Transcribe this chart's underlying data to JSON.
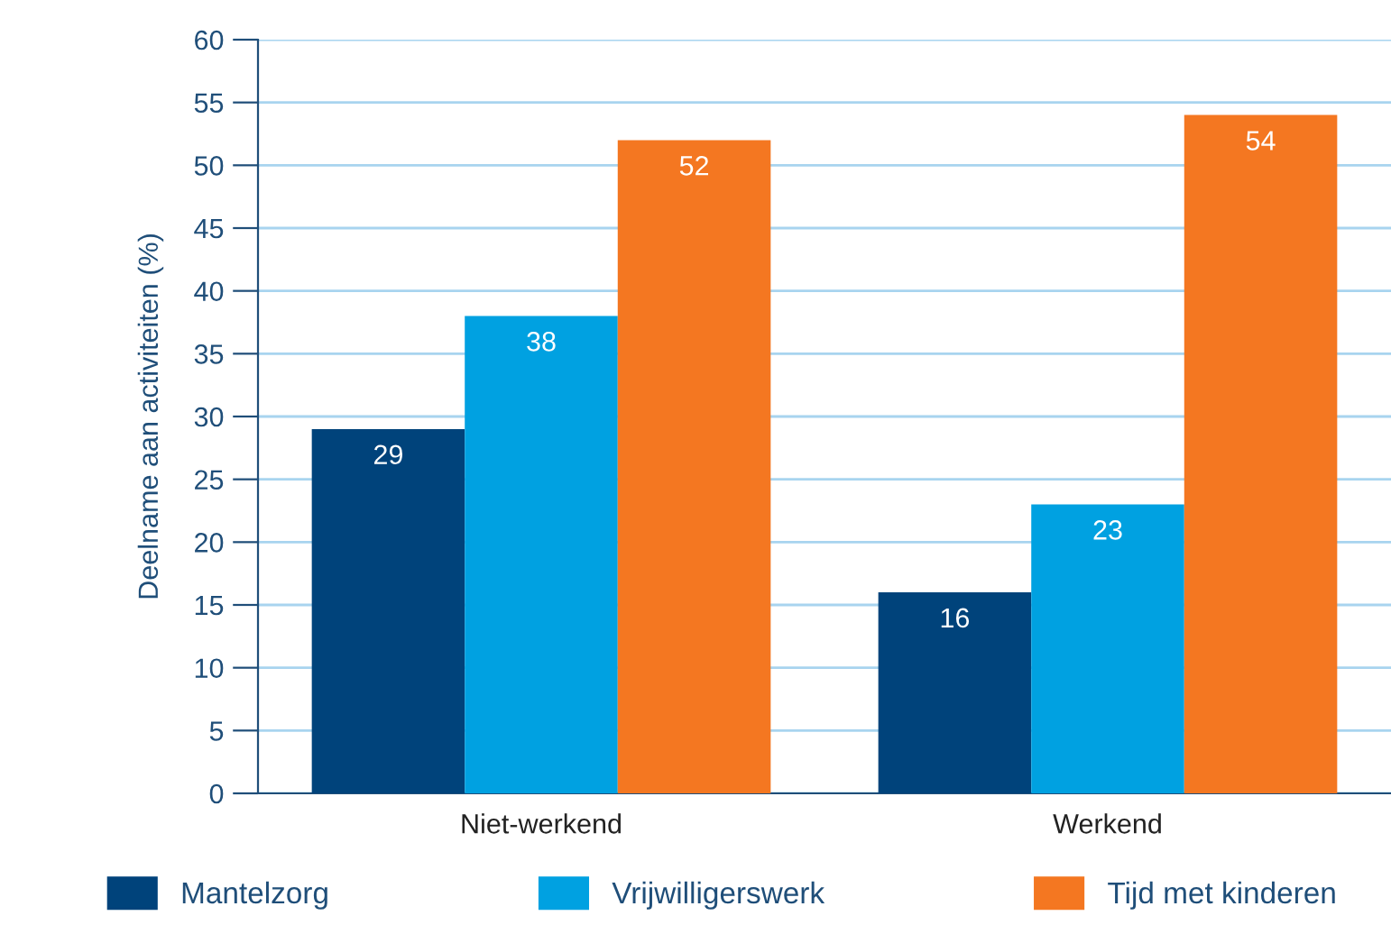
{
  "chart_data": {
    "type": "bar",
    "ylabel": "Deelname aan activiteiten (%)",
    "categories": [
      "Niet-werkend",
      "Werkend"
    ],
    "series": [
      {
        "name": "Mantelzorg",
        "color": "#00437b",
        "values": [
          29,
          16
        ]
      },
      {
        "name": "Vrijwilligerswerk",
        "color": "#00a1e1",
        "values": [
          38,
          23
        ]
      },
      {
        "name": "Tijd met kinderen",
        "color": "#f47721",
        "values": [
          52,
          54
        ]
      }
    ],
    "ylim": [
      0,
      60
    ],
    "yticks": [
      0,
      5,
      10,
      15,
      20,
      25,
      30,
      35,
      40,
      45,
      50,
      55,
      60
    ],
    "grid": "y",
    "legend": "bottom",
    "data_labels": true
  }
}
